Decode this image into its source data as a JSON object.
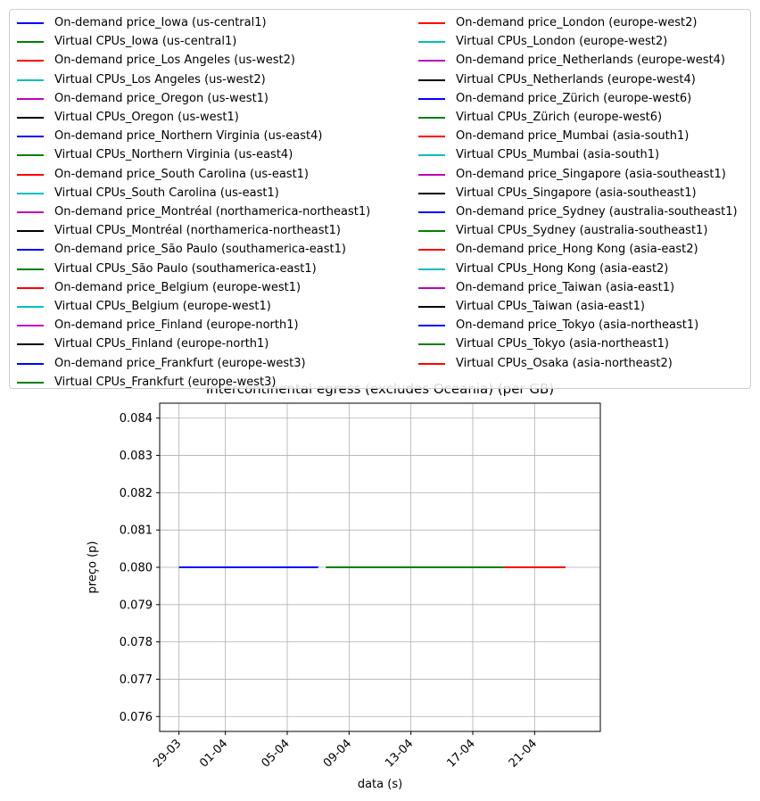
{
  "chart_data": {
    "type": "line",
    "title": "Intercontinental egress (excludes Oceania) (per GB)",
    "xlabel": "data (s)",
    "ylabel": "preço (p)",
    "x_tick_labels": [
      "29-03",
      "01-04",
      "05-04",
      "09-04",
      "13-04",
      "17-04",
      "21-04"
    ],
    "x_tick_dates": [
      "2021-03-29",
      "2021-04-01",
      "2021-04-05",
      "2021-04-09",
      "2021-04-13",
      "2021-04-17",
      "2021-04-21"
    ],
    "xlim": [
      "2021-03-27T18:00",
      "2021-04-25T06:00"
    ],
    "ylim": [
      0.0756,
      0.0844
    ],
    "y_ticks": [
      0.076,
      0.077,
      0.078,
      0.079,
      0.08,
      0.081,
      0.082,
      0.083,
      0.084
    ],
    "y_tick_labels": [
      "0.076",
      "0.077",
      "0.078",
      "0.079",
      "0.080",
      "0.081",
      "0.082",
      "0.083",
      "0.084"
    ],
    "grid": true,
    "legend_position": "above plot, two columns",
    "series": [
      {
        "name": "On-demand price_Iowa (us-central1)",
        "color": "#0000ff",
        "x": [
          "2021-03-29",
          "2021-04-07"
        ],
        "y": [
          0.08,
          0.08
        ]
      },
      {
        "name": "Virtual CPUs_Iowa (us-central1)",
        "color": "#008000",
        "x": [
          "2021-04-07T12:00",
          "2021-04-19"
        ],
        "y": [
          0.08,
          0.08
        ]
      },
      {
        "name": "On-demand price_Los Angeles (us-west2)",
        "color": "#ff0000",
        "x": [
          "2021-04-19",
          "2021-04-23"
        ],
        "y": [
          0.08,
          0.08
        ]
      },
      {
        "name": "Virtual CPUs_Los Angeles (us-west2)",
        "color": "#00bfbf"
      },
      {
        "name": "On-demand price_Oregon (us-west1)",
        "color": "#bf00bf"
      },
      {
        "name": "Virtual CPUs_Oregon (us-west1)",
        "color": "#000000"
      },
      {
        "name": "On-demand price_Northern Virginia (us-east4)",
        "color": "#0000ff"
      },
      {
        "name": "Virtual CPUs_Northern Virginia (us-east4)",
        "color": "#008000"
      },
      {
        "name": "On-demand price_South Carolina (us-east1)",
        "color": "#ff0000"
      },
      {
        "name": "Virtual CPUs_South Carolina (us-east1)",
        "color": "#00bfbf"
      },
      {
        "name": "On-demand price_Montréal (northamerica-northeast1)",
        "color": "#bf00bf"
      },
      {
        "name": "Virtual CPUs_Montréal (northamerica-northeast1)",
        "color": "#000000"
      },
      {
        "name": "On-demand price_São Paulo (southamerica-east1)",
        "color": "#0000ff"
      },
      {
        "name": "Virtual CPUs_São Paulo (southamerica-east1)",
        "color": "#008000"
      },
      {
        "name": "On-demand price_Belgium (europe-west1)",
        "color": "#ff0000"
      },
      {
        "name": "Virtual CPUs_Belgium (europe-west1)",
        "color": "#00bfbf"
      },
      {
        "name": "On-demand price_Finland (europe-north1)",
        "color": "#bf00bf"
      },
      {
        "name": "Virtual CPUs_Finland (europe-north1)",
        "color": "#000000"
      },
      {
        "name": "On-demand price_Frankfurt (europe-west3)",
        "color": "#0000ff"
      },
      {
        "name": "Virtual CPUs_Frankfurt (europe-west3)",
        "color": "#008000"
      },
      {
        "name": "On-demand price_London (europe-west2)",
        "color": "#ff0000"
      },
      {
        "name": "Virtual CPUs_London (europe-west2)",
        "color": "#00bfbf"
      },
      {
        "name": "On-demand price_Netherlands (europe-west4)",
        "color": "#bf00bf"
      },
      {
        "name": "Virtual CPUs_Netherlands (europe-west4)",
        "color": "#000000"
      },
      {
        "name": "On-demand price_Zürich (europe-west6)",
        "color": "#0000ff"
      },
      {
        "name": "Virtual CPUs_Zürich (europe-west6)",
        "color": "#008000"
      },
      {
        "name": "On-demand price_Mumbai (asia-south1)",
        "color": "#ff0000"
      },
      {
        "name": "Virtual CPUs_Mumbai (asia-south1)",
        "color": "#00bfbf"
      },
      {
        "name": "On-demand price_Singapore (asia-southeast1)",
        "color": "#bf00bf"
      },
      {
        "name": "Virtual CPUs_Singapore (asia-southeast1)",
        "color": "#000000"
      },
      {
        "name": "On-demand price_Sydney (australia-southeast1)",
        "color": "#0000ff"
      },
      {
        "name": "Virtual CPUs_Sydney (australia-southeast1)",
        "color": "#008000"
      },
      {
        "name": "On-demand price_Hong Kong (asia-east2)",
        "color": "#ff0000"
      },
      {
        "name": "Virtual CPUs_Hong Kong (asia-east2)",
        "color": "#00bfbf"
      },
      {
        "name": "On-demand price_Taiwan (asia-east1)",
        "color": "#bf00bf"
      },
      {
        "name": "Virtual CPUs_Taiwan (asia-east1)",
        "color": "#000000"
      },
      {
        "name": "On-demand price_Tokyo (asia-northeast1)",
        "color": "#0000ff"
      },
      {
        "name": "Virtual CPUs_Tokyo (asia-northeast1)",
        "color": "#008000"
      },
      {
        "name": "Virtual CPUs_Osaka (asia-northeast2)",
        "color": "#ff0000"
      }
    ]
  }
}
